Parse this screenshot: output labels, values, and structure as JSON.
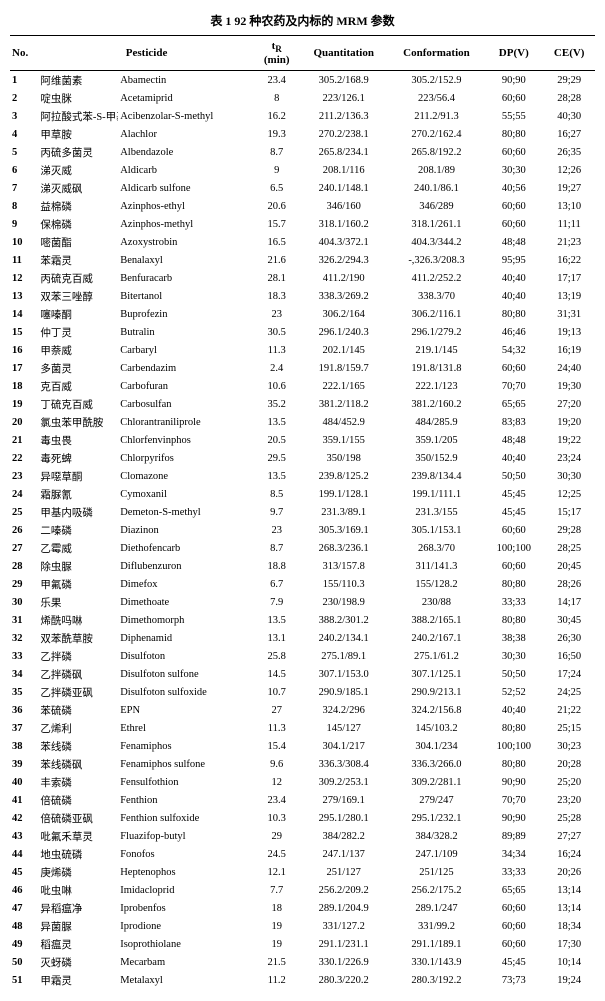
{
  "title": "表 1  92 种农药及内标的 MRM 参数",
  "columns": {
    "no": "No.",
    "pesticide": "Pesticide",
    "tr": "tʙ\n(min)",
    "quant": "Quantitation",
    "conf": "Conformation",
    "dp": "DP(V)",
    "ce": "CE(V)"
  },
  "rows": [
    {
      "no": "1",
      "cn": "阿维菌素",
      "en": "Abamectin",
      "tr": "23.4",
      "quant": "305.2/168.9",
      "conf": "305.2/152.9",
      "dp": "90;90",
      "ce": "29;29"
    },
    {
      "no": "2",
      "cn": "啶虫脒",
      "en": "Acetamiprid",
      "tr": "8",
      "quant": "223/126.1",
      "conf": "223/56.4",
      "dp": "60;60",
      "ce": "28;28"
    },
    {
      "no": "3",
      "cn": "阿拉酸式苯-S-甲基",
      "en": "Acibenzolar-S-methyl",
      "tr": "16.2",
      "quant": "211.2/136.3",
      "conf": "211.2/91.3",
      "dp": "55;55",
      "ce": "40;30"
    },
    {
      "no": "4",
      "cn": "甲草胺",
      "en": "Alachlor",
      "tr": "19.3",
      "quant": "270.2/238.1",
      "conf": "270.2/162.4",
      "dp": "80;80",
      "ce": "16;27"
    },
    {
      "no": "5",
      "cn": "丙硫多菌灵",
      "en": "Albendazole",
      "tr": "8.7",
      "quant": "265.8/234.1",
      "conf": "265.8/192.2",
      "dp": "60;60",
      "ce": "26;35"
    },
    {
      "no": "6",
      "cn": "涕灭威",
      "en": "Aldicarb",
      "tr": "9",
      "quant": "208.1/116",
      "conf": "208.1/89",
      "dp": "30;30",
      "ce": "12;26"
    },
    {
      "no": "7",
      "cn": "涕灭威砜",
      "en": "Aldicarb sulfone",
      "tr": "6.5",
      "quant": "240.1/148.1",
      "conf": "240.1/86.1",
      "dp": "40;56",
      "ce": "19;27"
    },
    {
      "no": "8",
      "cn": "益棉磷",
      "en": "Azinphos-ethyl",
      "tr": "20.6",
      "quant": "346/160",
      "conf": "346/289",
      "dp": "60;60",
      "ce": "13;10"
    },
    {
      "no": "9",
      "cn": "保棉磷",
      "en": "Azinphos-methyl",
      "tr": "15.7",
      "quant": "318.1/160.2",
      "conf": "318.1/261.1",
      "dp": "60;60",
      "ce": "11;11"
    },
    {
      "no": "10",
      "cn": "嘧菌酯",
      "en": "Azoxystrobin",
      "tr": "16.5",
      "quant": "404.3/372.1",
      "conf": "404.3/344.2",
      "dp": "48;48",
      "ce": "21;23"
    },
    {
      "no": "11",
      "cn": "苯霜灵",
      "en": "Benalaxyl",
      "tr": "21.6",
      "quant": "326.2/294.3",
      "conf": "-,326.3/208.3",
      "dp": "95;95",
      "ce": "16;22"
    },
    {
      "no": "12",
      "cn": "丙硫克百威",
      "en": "Benfuracarb",
      "tr": "28.1",
      "quant": "411.2/190",
      "conf": "411.2/252.2",
      "dp": "40;40",
      "ce": "17;17"
    },
    {
      "no": "13",
      "cn": "双苯三唑醇",
      "en": "Bitertanol",
      "tr": "18.3",
      "quant": "338.3/269.2",
      "conf": "338.3/70",
      "dp": "40;40",
      "ce": "13;19"
    },
    {
      "no": "14",
      "cn": "噻嗪酮",
      "en": "Buprofezin",
      "tr": "23",
      "quant": "306.2/164",
      "conf": "306.2/116.1",
      "dp": "80;80",
      "ce": "31;31"
    },
    {
      "no": "15",
      "cn": "仲丁灵",
      "en": "Butralin",
      "tr": "30.5",
      "quant": "296.1/240.3",
      "conf": "296.1/279.2",
      "dp": "46;46",
      "ce": "19;13"
    },
    {
      "no": "16",
      "cn": "甲萘威",
      "en": "Carbaryl",
      "tr": "11.3",
      "quant": "202.1/145",
      "conf": "219.1/145",
      "dp": "54;32",
      "ce": "16;19"
    },
    {
      "no": "17",
      "cn": "多菌灵",
      "en": "Carbendazim",
      "tr": "2.4",
      "quant": "191.8/159.7",
      "conf": "191.8/131.8",
      "dp": "60;60",
      "ce": "24;40"
    },
    {
      "no": "18",
      "cn": "克百威",
      "en": "Carbofuran",
      "tr": "10.6",
      "quant": "222.1/165",
      "conf": "222.1/123",
      "dp": "70;70",
      "ce": "19;30"
    },
    {
      "no": "19",
      "cn": "丁硫克百威",
      "en": "Carbosulfan",
      "tr": "35.2",
      "quant": "381.2/118.2",
      "conf": "381.2/160.2",
      "dp": "65;65",
      "ce": "27;20"
    },
    {
      "no": "20",
      "cn": "氯虫苯甲酰胺",
      "en": "Chlorantraniliprole",
      "tr": "13.5",
      "quant": "484/452.9",
      "conf": "484/285.9",
      "dp": "83;83",
      "ce": "19;20"
    },
    {
      "no": "21",
      "cn": "毒虫畏",
      "en": "Chlorfenvinphos",
      "tr": "20.5",
      "quant": "359.1/155",
      "conf": "359.1/205",
      "dp": "48;48",
      "ce": "19;22"
    },
    {
      "no": "22",
      "cn": "毒死蜱",
      "en": "Chlorpyrifos",
      "tr": "29.5",
      "quant": "350/198",
      "conf": "350/152.9",
      "dp": "40;40",
      "ce": "23;24"
    },
    {
      "no": "23",
      "cn": "异噁草酮",
      "en": "Clomazone",
      "tr": "13.5",
      "quant": "239.8/125.2",
      "conf": "239.8/134.4",
      "dp": "50;50",
      "ce": "30;30"
    },
    {
      "no": "24",
      "cn": "霜脲氰",
      "en": "Cymoxanil",
      "tr": "8.5",
      "quant": "199.1/128.1",
      "conf": "199.1/111.1",
      "dp": "45;45",
      "ce": "12;25"
    },
    {
      "no": "25",
      "cn": "甲基内吸磷",
      "en": "Demeton-S-methyl",
      "tr": "9.7",
      "quant": "231.3/89.1",
      "conf": "231.3/155",
      "dp": "45;45",
      "ce": "15;17"
    },
    {
      "no": "26",
      "cn": "二嗪磷",
      "en": "Diazinon",
      "tr": "23",
      "quant": "305.3/169.1",
      "conf": "305.1/153.1",
      "dp": "60;60",
      "ce": "29;28"
    },
    {
      "no": "27",
      "cn": "乙霉威",
      "en": "Diethofencarb",
      "tr": "8.7",
      "quant": "268.3/236.1",
      "conf": "268.3/70",
      "dp": "100;100",
      "ce": "28;25"
    },
    {
      "no": "28",
      "cn": "除虫脲",
      "en": "Diflubenzuron",
      "tr": "18.8",
      "quant": "313/157.8",
      "conf": "311/141.3",
      "dp": "60;60",
      "ce": "20;45"
    },
    {
      "no": "29",
      "cn": "甲氟磷",
      "en": "Dimefox",
      "tr": "6.7",
      "quant": "155/110.3",
      "conf": "155/128.2",
      "dp": "80;80",
      "ce": "28;26"
    },
    {
      "no": "30",
      "cn": "乐果",
      "en": "Dimethoate",
      "tr": "7.9",
      "quant": "230/198.9",
      "conf": "230/88",
      "dp": "33;33",
      "ce": "14;17"
    },
    {
      "no": "31",
      "cn": "烯酰吗啉",
      "en": "Dimethomorph",
      "tr": "13.5",
      "quant": "388.2/301.2",
      "conf": "388.2/165.1",
      "dp": "80;80",
      "ce": "30;45"
    },
    {
      "no": "32",
      "cn": "双苯酰草胺",
      "en": "Diphenamid",
      "tr": "13.1",
      "quant": "240.2/134.1",
      "conf": "240.2/167.1",
      "dp": "38;38",
      "ce": "26;30"
    },
    {
      "no": "33",
      "cn": "乙拌磷",
      "en": "Disulfoton",
      "tr": "25.8",
      "quant": "275.1/89.1",
      "conf": "275.1/61.2",
      "dp": "30;30",
      "ce": "16;50"
    },
    {
      "no": "34",
      "cn": "乙拌磷砜",
      "en": "Disulfoton sulfone",
      "tr": "14.5",
      "quant": "307.1/153.0",
      "conf": "307.1/125.1",
      "dp": "50;50",
      "ce": "17;24"
    },
    {
      "no": "35",
      "cn": "乙拌磷亚砜",
      "en": "Disulfoton sulfoxide",
      "tr": "10.7",
      "quant": "290.9/185.1",
      "conf": "290.9/213.1",
      "dp": "52;52",
      "ce": "24;25"
    },
    {
      "no": "36",
      "cn": "苯硫磷",
      "en": "EPN",
      "tr": "27",
      "quant": "324.2/296",
      "conf": "324.2/156.8",
      "dp": "40;40",
      "ce": "21;22"
    },
    {
      "no": "37",
      "cn": "乙烯利",
      "en": "Ethrel",
      "tr": "11.3",
      "quant": "145/127",
      "conf": "145/103.2",
      "dp": "80;80",
      "ce": "25;15"
    },
    {
      "no": "38",
      "cn": "苯线磷",
      "en": "Fenamiphos",
      "tr": "15.4",
      "quant": "304.1/217",
      "conf": "304.1/234",
      "dp": "100;100",
      "ce": "30;23"
    },
    {
      "no": "39",
      "cn": "苯线磷砜",
      "en": "Fenamiphos sulfone",
      "tr": "9.6",
      "quant": "336.3/308.4",
      "conf": "336.3/266.0",
      "dp": "80;80",
      "ce": "20;28"
    },
    {
      "no": "40",
      "cn": "丰索磷",
      "en": "Fensulfothion",
      "tr": "12",
      "quant": "309.2/253.1",
      "conf": "309.2/281.1",
      "dp": "90;90",
      "ce": "25;20"
    },
    {
      "no": "41",
      "cn": "倍硫磷",
      "en": "Fenthion",
      "tr": "23.4",
      "quant": "279/169.1",
      "conf": "279/247",
      "dp": "70;70",
      "ce": "23;20"
    },
    {
      "no": "42",
      "cn": "倍硫磷亚砜",
      "en": "Fenthion sulfoxide",
      "tr": "10.3",
      "quant": "295.1/280.1",
      "conf": "295.1/232.1",
      "dp": "90;90",
      "ce": "25;28"
    },
    {
      "no": "43",
      "cn": "吡氟禾草灵",
      "en": "Fluazifop-butyl",
      "tr": "29",
      "quant": "384/282.2",
      "conf": "384/328.2",
      "dp": "89;89",
      "ce": "27;27"
    },
    {
      "no": "44",
      "cn": "地虫硫磷",
      "en": "Fonofos",
      "tr": "24.5",
      "quant": "247.1/137",
      "conf": "247.1/109",
      "dp": "34;34",
      "ce": "16;24"
    },
    {
      "no": "45",
      "cn": "庚烯磷",
      "en": "Heptenophos",
      "tr": "12.1",
      "quant": "251/127",
      "conf": "251/125",
      "dp": "33;33",
      "ce": "20;26"
    },
    {
      "no": "46",
      "cn": "吡虫啉",
      "en": "Imidacloprid",
      "tr": "7.7",
      "quant": "256.2/209.2",
      "conf": "256.2/175.2",
      "dp": "65;65",
      "ce": "13;14"
    },
    {
      "no": "47",
      "cn": "异稻瘟净",
      "en": "Iprobenfos",
      "tr": "18",
      "quant": "289.1/204.9",
      "conf": "289.1/247",
      "dp": "60;60",
      "ce": "13;14"
    },
    {
      "no": "48",
      "cn": "异菌脲",
      "en": "Iprodione",
      "tr": "19",
      "quant": "331/127.2",
      "conf": "331/99.2",
      "dp": "60;60",
      "ce": "18;34"
    },
    {
      "no": "49",
      "cn": "稻瘟灵",
      "en": "Isoprothiolane",
      "tr": "19",
      "quant": "291.1/231.1",
      "conf": "291.1/189.1",
      "dp": "60;60",
      "ce": "17;30"
    },
    {
      "no": "50",
      "cn": "灭蚜磷",
      "en": "Mecarbam",
      "tr": "21.5",
      "quant": "330.1/226.9",
      "conf": "330.1/143.9",
      "dp": "45;45",
      "ce": "10;14"
    },
    {
      "no": "51",
      "cn": "甲霜灵",
      "en": "Metalaxyl",
      "tr": "11.2",
      "quant": "280.3/220.2",
      "conf": "280.3/192.2",
      "dp": "73;73",
      "ce": "19;24"
    }
  ]
}
